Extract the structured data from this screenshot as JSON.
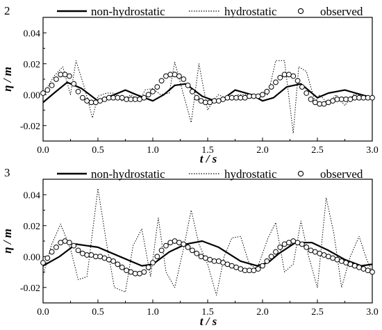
{
  "chart_data": [
    {
      "type": "line",
      "panel_label": "2",
      "xlabel": "t / s",
      "ylabel": "η / m",
      "xlim": [
        0.0,
        3.0
      ],
      "ylim": [
        -0.03,
        0.05
      ],
      "xticks": [
        "0.0",
        "0.5",
        "1.0",
        "1.5",
        "2.0",
        "2.5",
        "3.0"
      ],
      "yticks": [
        "-0.02",
        "0.00",
        "0.02",
        "0.04"
      ],
      "ytick_values": [
        -0.02,
        0.0,
        0.02,
        0.04
      ],
      "xtick_values": [
        0.0,
        0.5,
        1.0,
        1.5,
        2.0,
        2.5,
        3.0
      ],
      "legend_position": "top",
      "series": [
        {
          "name": "non-hydrostatic",
          "style": "solid",
          "x": [
            0.0,
            0.1,
            0.22,
            0.35,
            0.5,
            0.65,
            0.75,
            0.85,
            1.0,
            1.1,
            1.2,
            1.3,
            1.45,
            1.6,
            1.75,
            1.9,
            2.0,
            2.1,
            2.22,
            2.35,
            2.5,
            2.6,
            2.75,
            2.9,
            3.0
          ],
          "y": [
            -0.005,
            0.001,
            0.008,
            0.004,
            -0.004,
            0.0,
            0.003,
            0.0,
            -0.004,
            0.0,
            0.006,
            0.007,
            -0.001,
            -0.005,
            0.003,
            0.0,
            -0.004,
            -0.002,
            0.005,
            0.007,
            -0.002,
            0.001,
            0.003,
            0.0,
            -0.002
          ]
        },
        {
          "name": "hydrostatic",
          "style": "dotted",
          "x": [
            0.0,
            0.1,
            0.18,
            0.25,
            0.3,
            0.38,
            0.45,
            0.5,
            0.58,
            0.65,
            0.72,
            0.8,
            0.88,
            0.93,
            1.0,
            1.07,
            1.15,
            1.2,
            1.28,
            1.35,
            1.42,
            1.5,
            1.56,
            1.6,
            1.68,
            1.78,
            1.88,
            1.95,
            2.05,
            2.12,
            2.2,
            2.28,
            2.33,
            2.4,
            2.48,
            2.52,
            2.6,
            2.67,
            2.75,
            2.83,
            2.9,
            3.0
          ],
          "y": [
            0.0,
            0.012,
            0.018,
            0.0,
            0.022,
            0.004,
            -0.015,
            -0.001,
            0.001,
            0.001,
            -0.004,
            0.0,
            -0.004,
            0.003,
            0.004,
            0.0,
            0.001,
            0.021,
            0.0,
            -0.018,
            0.02,
            -0.01,
            -0.003,
            0.0,
            -0.003,
            0.0,
            0.0,
            0.0,
            0.0,
            0.022,
            0.022,
            -0.025,
            0.018,
            0.015,
            -0.005,
            0.0,
            -0.006,
            0.0,
            -0.007,
            0.0,
            0.0,
            -0.002
          ]
        },
        {
          "name": "observed",
          "style": "markers",
          "x": [
            0.0,
            0.04,
            0.08,
            0.12,
            0.16,
            0.2,
            0.24,
            0.28,
            0.32,
            0.36,
            0.4,
            0.44,
            0.48,
            0.52,
            0.56,
            0.6,
            0.64,
            0.68,
            0.72,
            0.76,
            0.8,
            0.84,
            0.88,
            0.92,
            0.96,
            1.0,
            1.04,
            1.08,
            1.12,
            1.16,
            1.2,
            1.24,
            1.28,
            1.32,
            1.36,
            1.4,
            1.44,
            1.48,
            1.52,
            1.56,
            1.6,
            1.64,
            1.68,
            1.72,
            1.76,
            1.8,
            1.84,
            1.88,
            1.92,
            1.96,
            2.0,
            2.04,
            2.08,
            2.12,
            2.16,
            2.2,
            2.24,
            2.28,
            2.32,
            2.36,
            2.4,
            2.44,
            2.48,
            2.52,
            2.56,
            2.6,
            2.64,
            2.68,
            2.72,
            2.76,
            2.8,
            2.84,
            2.88,
            2.92,
            2.96,
            3.0
          ],
          "y": [
            0.001,
            0.003,
            0.006,
            0.01,
            0.013,
            0.013,
            0.012,
            0.007,
            0.002,
            -0.002,
            -0.004,
            -0.005,
            -0.005,
            -0.004,
            -0.003,
            -0.002,
            -0.002,
            -0.002,
            -0.002,
            -0.003,
            -0.003,
            -0.003,
            -0.003,
            -0.002,
            0.0,
            0.002,
            0.005,
            0.009,
            0.012,
            0.013,
            0.013,
            0.012,
            0.01,
            0.006,
            0.002,
            -0.002,
            -0.004,
            -0.005,
            -0.005,
            -0.004,
            -0.004,
            -0.003,
            -0.002,
            -0.002,
            -0.002,
            -0.002,
            -0.002,
            -0.001,
            -0.001,
            -0.001,
            0.0,
            0.002,
            0.005,
            0.008,
            0.011,
            0.013,
            0.013,
            0.012,
            0.009,
            0.005,
            0.001,
            -0.003,
            -0.005,
            -0.006,
            -0.006,
            -0.005,
            -0.004,
            -0.003,
            -0.003,
            -0.003,
            -0.003,
            -0.002,
            -0.002,
            -0.002,
            -0.002,
            -0.002
          ]
        }
      ]
    },
    {
      "type": "line",
      "panel_label": "3",
      "xlabel": "t / s",
      "ylabel": "η / m",
      "xlim": [
        0.0,
        3.0
      ],
      "ylim": [
        -0.03,
        0.05
      ],
      "xticks": [
        "0.0",
        "0.5",
        "1.0",
        "1.5",
        "2.0",
        "2.5",
        "3.0"
      ],
      "yticks": [
        "-0.02",
        "0.00",
        "0.02",
        "0.04"
      ],
      "ytick_values": [
        -0.02,
        0.0,
        0.02,
        0.04
      ],
      "xtick_values": [
        0.0,
        0.5,
        1.0,
        1.5,
        2.0,
        2.5,
        3.0
      ],
      "legend_position": "top",
      "series": [
        {
          "name": "non-hydrostatic",
          "style": "solid",
          "x": [
            0.0,
            0.15,
            0.3,
            0.5,
            0.7,
            0.9,
            1.0,
            1.15,
            1.3,
            1.45,
            1.6,
            1.8,
            1.95,
            2.05,
            2.15,
            2.3,
            2.45,
            2.6,
            2.75,
            2.9,
            3.0
          ],
          "y": [
            -0.006,
            0.0,
            0.008,
            0.006,
            0.0,
            -0.006,
            -0.005,
            0.003,
            0.008,
            0.01,
            0.006,
            -0.003,
            -0.006,
            -0.004,
            0.002,
            0.009,
            0.009,
            0.004,
            -0.002,
            -0.006,
            -0.005
          ]
        },
        {
          "name": "hydrostatic",
          "style": "dotted",
          "x": [
            0.0,
            0.08,
            0.16,
            0.25,
            0.32,
            0.4,
            0.5,
            0.58,
            0.65,
            0.75,
            0.82,
            0.9,
            0.98,
            1.05,
            1.12,
            1.2,
            1.28,
            1.35,
            1.42,
            1.5,
            1.58,
            1.65,
            1.72,
            1.8,
            1.88,
            1.95,
            2.05,
            2.12,
            2.2,
            2.28,
            2.35,
            2.42,
            2.5,
            2.58,
            2.65,
            2.72,
            2.8,
            2.88,
            2.95,
            3.0
          ],
          "y": [
            -0.012,
            0.008,
            0.021,
            0.005,
            -0.015,
            -0.013,
            0.044,
            0.008,
            -0.02,
            -0.023,
            0.007,
            0.018,
            -0.013,
            0.025,
            -0.01,
            -0.02,
            0.005,
            0.03,
            0.008,
            -0.005,
            -0.025,
            0.0,
            0.012,
            0.013,
            -0.005,
            -0.008,
            0.012,
            0.022,
            -0.01,
            -0.005,
            0.023,
            0.0,
            -0.02,
            0.038,
            0.015,
            -0.02,
            0.0,
            0.013,
            -0.002,
            -0.01
          ]
        },
        {
          "name": "observed",
          "style": "markers",
          "x": [
            0.0,
            0.04,
            0.08,
            0.12,
            0.16,
            0.2,
            0.24,
            0.28,
            0.32,
            0.36,
            0.4,
            0.44,
            0.48,
            0.52,
            0.56,
            0.6,
            0.64,
            0.68,
            0.72,
            0.76,
            0.8,
            0.84,
            0.88,
            0.92,
            0.96,
            1.0,
            1.04,
            1.08,
            1.12,
            1.16,
            1.2,
            1.24,
            1.28,
            1.32,
            1.36,
            1.4,
            1.44,
            1.48,
            1.52,
            1.56,
            1.6,
            1.64,
            1.68,
            1.72,
            1.76,
            1.8,
            1.84,
            1.88,
            1.92,
            1.96,
            2.0,
            2.04,
            2.08,
            2.12,
            2.16,
            2.2,
            2.24,
            2.28,
            2.32,
            2.36,
            2.4,
            2.44,
            2.48,
            2.52,
            2.56,
            2.6,
            2.64,
            2.68,
            2.72,
            2.76,
            2.8,
            2.84,
            2.88,
            2.92,
            2.96,
            3.0
          ],
          "y": [
            -0.004,
            -0.001,
            0.003,
            0.006,
            0.009,
            0.01,
            0.009,
            0.007,
            0.004,
            0.002,
            0.001,
            0.001,
            0.0,
            0.0,
            -0.001,
            -0.002,
            -0.003,
            -0.005,
            -0.007,
            -0.009,
            -0.01,
            -0.011,
            -0.011,
            -0.01,
            -0.007,
            -0.004,
            0.0,
            0.004,
            0.007,
            0.009,
            0.01,
            0.009,
            0.008,
            0.006,
            0.004,
            0.002,
            0.0,
            -0.001,
            -0.002,
            -0.003,
            -0.003,
            -0.004,
            -0.005,
            -0.006,
            -0.007,
            -0.008,
            -0.009,
            -0.009,
            -0.009,
            -0.008,
            -0.006,
            -0.003,
            0.0,
            0.003,
            0.006,
            0.008,
            0.009,
            0.01,
            0.009,
            0.008,
            0.006,
            0.004,
            0.003,
            0.002,
            0.001,
            0.0,
            -0.001,
            -0.002,
            -0.003,
            -0.004,
            -0.005,
            -0.006,
            -0.007,
            -0.008,
            -0.009,
            -0.01
          ]
        }
      ]
    }
  ]
}
